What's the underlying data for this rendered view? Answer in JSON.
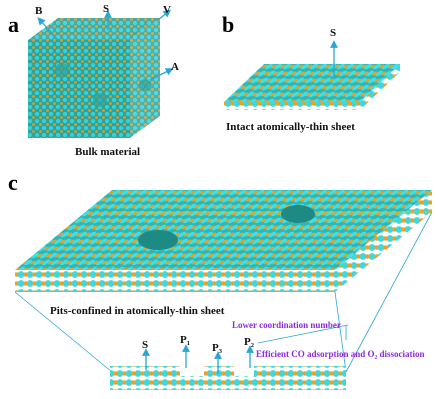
{
  "panels": [
    {
      "label": "a",
      "texts": [
        "B",
        "S",
        "V",
        "A"
      ],
      "caption": "Bulk material"
    },
    {
      "label": "b",
      "texts": [
        "S"
      ],
      "caption": "Intact atomically-thin sheet"
    },
    {
      "label": "c",
      "caption": "Pits-confined in atomically-thin sheet",
      "texts": [
        "S",
        "P₁",
        "P₃",
        "P₂"
      ],
      "notes": [
        "Lower coordination number",
        "Efficient CO adsorption and O₂ dissociation"
      ]
    }
  ]
}
